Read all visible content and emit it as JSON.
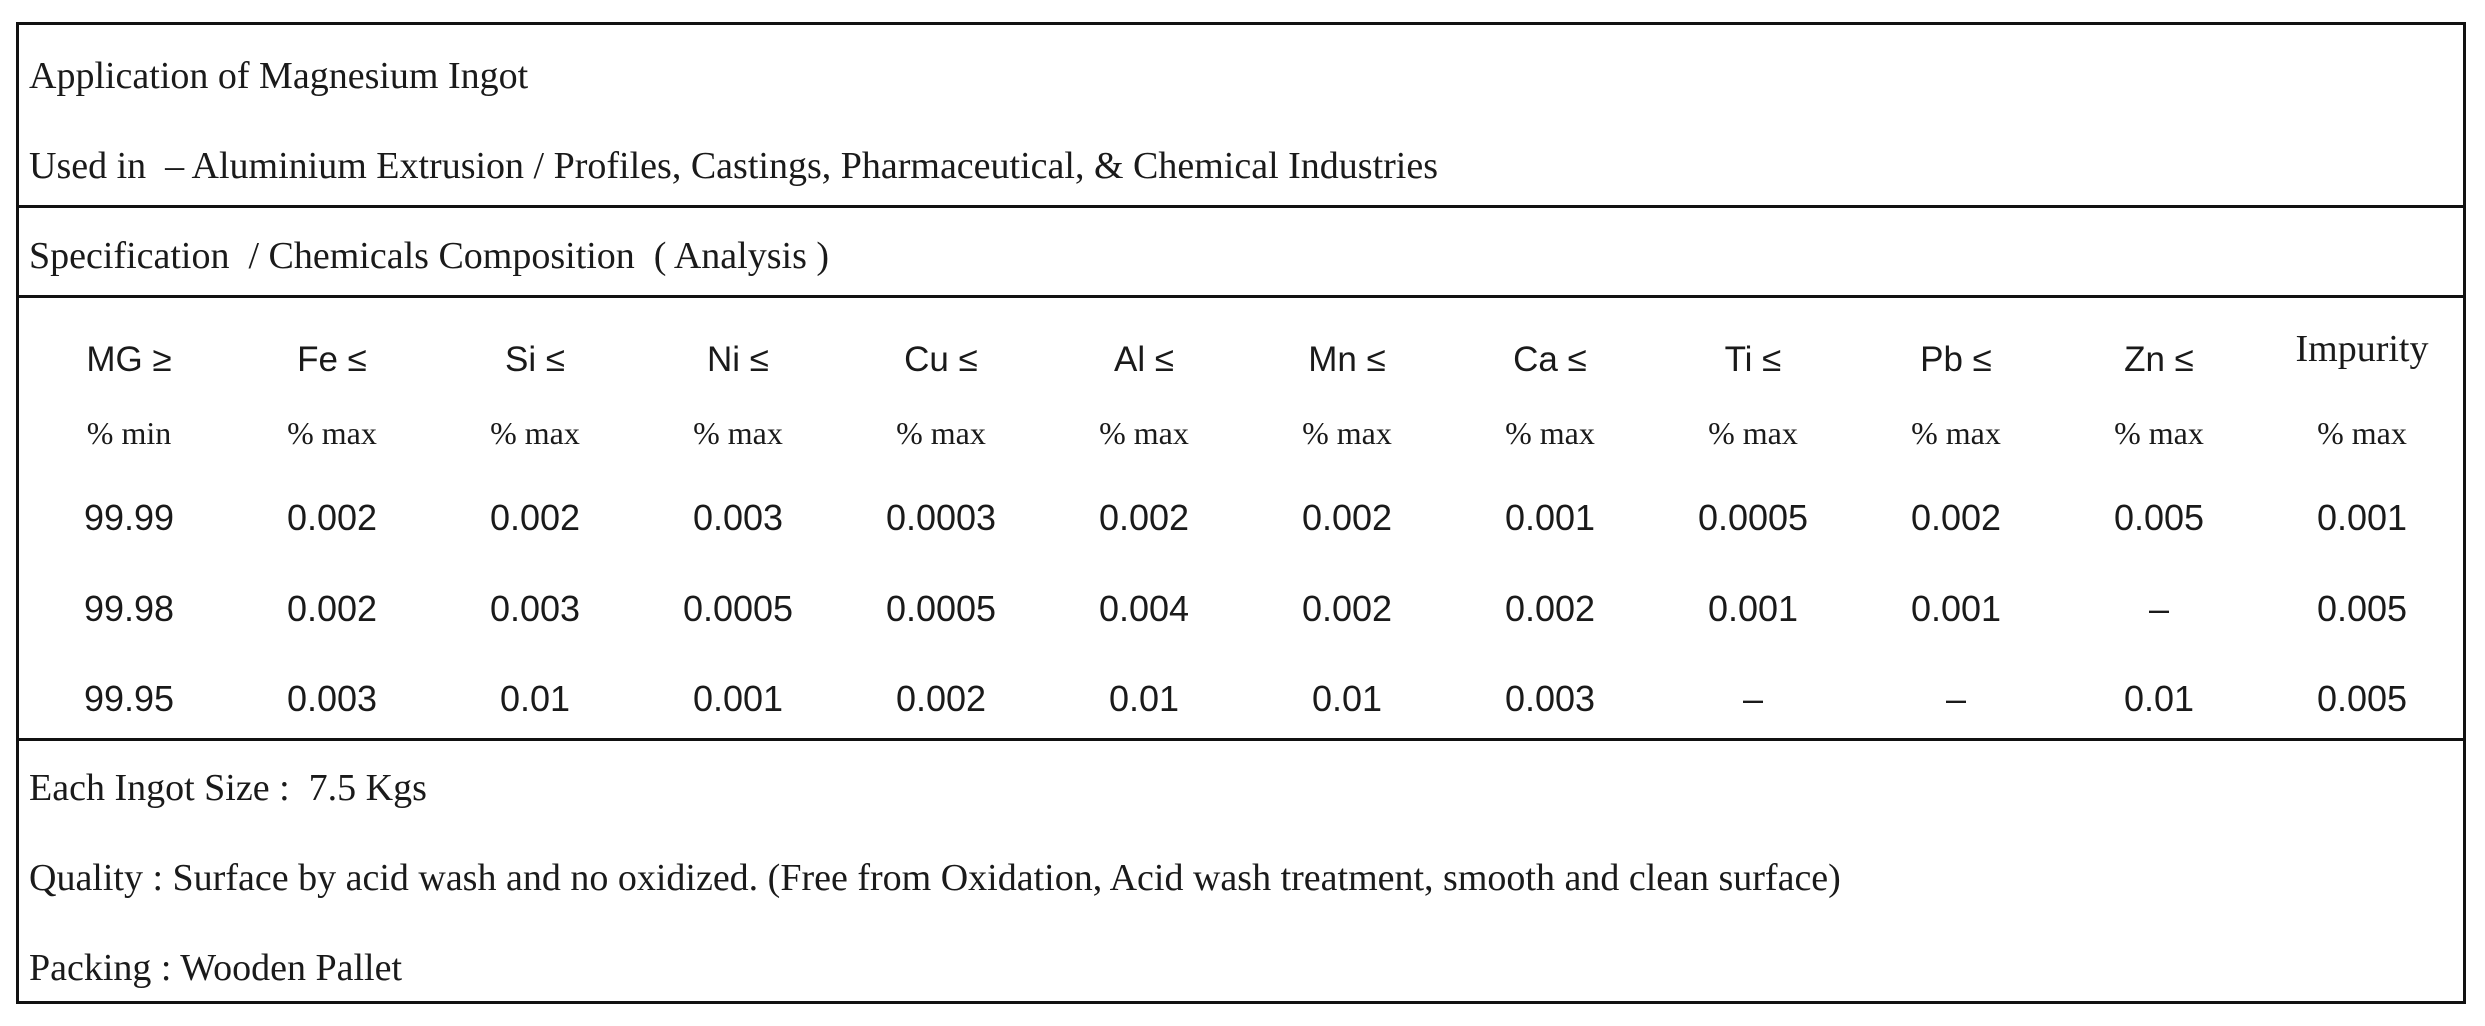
{
  "application": {
    "title": "Application of Magnesium Ingot",
    "used_in": "Used in  – Aluminium Extrusion / Profiles, Castings, Pharmaceutical, & Chemical Industries"
  },
  "specification": {
    "title": "Specification  / Chemicals Composition  ( Analysis )"
  },
  "table": {
    "headers": [
      "MG ≥",
      "Fe ≤",
      "Si ≤",
      "Ni ≤",
      "Cu ≤",
      "Al ≤",
      "Mn ≤",
      "Ca ≤",
      "Ti ≤",
      "Pb ≤",
      "Zn ≤",
      "Impurity"
    ],
    "units": [
      "% min",
      "% max",
      "% max",
      "% max",
      "% max",
      "% max",
      "% max",
      "% max",
      "% max",
      "% max",
      "% max",
      "% max"
    ],
    "rows": [
      [
        "99.99",
        "0.002",
        "0.002",
        "0.003",
        "0.0003",
        "0.002",
        "0.002",
        "0.001",
        "0.0005",
        "0.002",
        "0.005",
        "0.001"
      ],
      [
        "99.98",
        "0.002",
        "0.003",
        "0.0005",
        "0.0005",
        "0.004",
        "0.002",
        "0.002",
        "0.001",
        "0.001",
        "–",
        "0.005"
      ],
      [
        "99.95",
        "0.003",
        "0.01",
        "0.001",
        "0.002",
        "0.01",
        "0.01",
        "0.003",
        "–",
        "–",
        "0.01",
        "0.005"
      ]
    ]
  },
  "details": {
    "size": "Each Ingot Size :  7.5 Kgs",
    "quality": "Quality : Surface by acid wash and no oxidized. (Free from Oxidation, Acid wash treatment, smooth and clean surface)",
    "packing": "Packing : Wooden Pallet"
  }
}
